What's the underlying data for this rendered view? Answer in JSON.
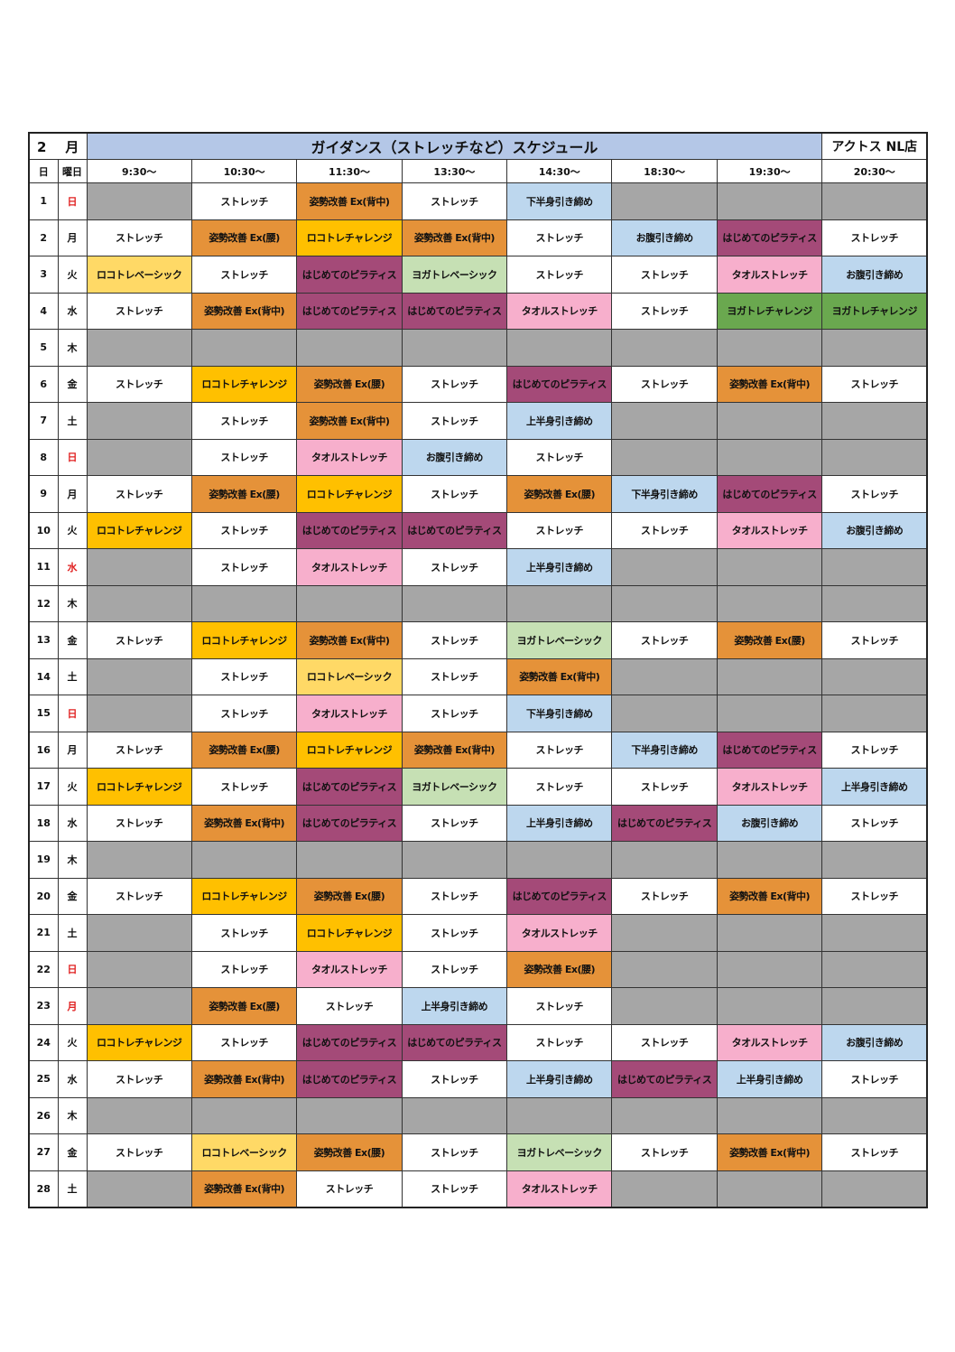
{
  "header": {
    "month_num": "2",
    "month_label": "月",
    "title": "ガイダンス（ストレッチなど）スケジュール",
    "store": "アクトス NL店"
  },
  "columns": {
    "day": "日",
    "weekday": "曜日",
    "times": [
      "9:30～",
      "10:30～",
      "11:30～",
      "13:30～",
      "14:30～",
      "18:30～",
      "19:30～",
      "20:30～"
    ]
  },
  "colors": {
    "closed": "#a6a6a6",
    "ストレッチ": "#ffffff",
    "姿勢改善 Ex(背中)": "#e59239",
    "姿勢改善 Ex(腰)": "#e59239",
    "ロコトレチャレンジ": "#ffc000",
    "ロコトレベーシック": "#ffd966",
    "はじめてのピラティス": "#a44a78",
    "ヨガトレベーシック": "#c6e0b4",
    "ヨガトレチャレンジ": "#6aa84f",
    "タオルストレッチ": "#f7afcc",
    "下半身引き締め": "#bdd7ee",
    "上半身引き締め": "#bdd7ee",
    "お腹引き締め": "#bdd7ee",
    "holiday_text": "#e02020"
  },
  "rows": [
    {
      "day": "1",
      "weekday": "日",
      "red": true,
      "cells": [
        "",
        "ストレッチ",
        "姿勢改善 Ex(背中)",
        "ストレッチ",
        "下半身引き締め",
        "",
        "",
        ""
      ]
    },
    {
      "day": "2",
      "weekday": "月",
      "red": false,
      "cells": [
        "ストレッチ",
        "姿勢改善 Ex(腰)",
        "ロコトレチャレンジ",
        "姿勢改善 Ex(背中)",
        "ストレッチ",
        "お腹引き締め",
        "はじめてのピラティス",
        "ストレッチ"
      ]
    },
    {
      "day": "3",
      "weekday": "火",
      "red": false,
      "cells": [
        "ロコトレベーシック",
        "ストレッチ",
        "はじめてのピラティス",
        "ヨガトレベーシック",
        "ストレッチ",
        "ストレッチ",
        "タオルストレッチ",
        "お腹引き締め"
      ]
    },
    {
      "day": "4",
      "weekday": "水",
      "red": false,
      "cells": [
        "ストレッチ",
        "姿勢改善 Ex(背中)",
        "はじめてのピラティス",
        "はじめてのピラティス",
        "タオルストレッチ",
        "ストレッチ",
        "ヨガトレチャレンジ",
        "ヨガトレチャレンジ"
      ]
    },
    {
      "day": "5",
      "weekday": "木",
      "red": false,
      "cells": [
        "",
        "",
        "",
        "",
        "",
        "",
        "",
        ""
      ]
    },
    {
      "day": "6",
      "weekday": "金",
      "red": false,
      "cells": [
        "ストレッチ",
        "ロコトレチャレンジ",
        "姿勢改善 Ex(腰)",
        "ストレッチ",
        "はじめてのピラティス",
        "ストレッチ",
        "姿勢改善 Ex(背中)",
        "ストレッチ"
      ]
    },
    {
      "day": "7",
      "weekday": "土",
      "red": false,
      "cells": [
        "",
        "ストレッチ",
        "姿勢改善 Ex(背中)",
        "ストレッチ",
        "上半身引き締め",
        "",
        "",
        ""
      ]
    },
    {
      "day": "8",
      "weekday": "日",
      "red": true,
      "cells": [
        "",
        "ストレッチ",
        "タオルストレッチ",
        "お腹引き締め",
        "ストレッチ",
        "",
        "",
        ""
      ]
    },
    {
      "day": "9",
      "weekday": "月",
      "red": false,
      "cells": [
        "ストレッチ",
        "姿勢改善 Ex(腰)",
        "ロコトレチャレンジ",
        "ストレッチ",
        "姿勢改善 Ex(腰)",
        "下半身引き締め",
        "はじめてのピラティス",
        "ストレッチ"
      ]
    },
    {
      "day": "10",
      "weekday": "火",
      "red": false,
      "cells": [
        "ロコトレチャレンジ",
        "ストレッチ",
        "はじめてのピラティス",
        "はじめてのピラティス",
        "ストレッチ",
        "ストレッチ",
        "タオルストレッチ",
        "お腹引き締め"
      ]
    },
    {
      "day": "11",
      "weekday": "水",
      "red": true,
      "cells": [
        "",
        "ストレッチ",
        "タオルストレッチ",
        "ストレッチ",
        "上半身引き締め",
        "",
        "",
        ""
      ]
    },
    {
      "day": "12",
      "weekday": "木",
      "red": false,
      "cells": [
        "",
        "",
        "",
        "",
        "",
        "",
        "",
        ""
      ]
    },
    {
      "day": "13",
      "weekday": "金",
      "red": false,
      "cells": [
        "ストレッチ",
        "ロコトレチャレンジ",
        "姿勢改善 Ex(背中)",
        "ストレッチ",
        "ヨガトレベーシック",
        "ストレッチ",
        "姿勢改善 Ex(腰)",
        "ストレッチ"
      ]
    },
    {
      "day": "14",
      "weekday": "土",
      "red": false,
      "cells": [
        "",
        "ストレッチ",
        "ロコトレベーシック",
        "ストレッチ",
        "姿勢改善 Ex(背中)",
        "",
        "",
        ""
      ]
    },
    {
      "day": "15",
      "weekday": "日",
      "red": true,
      "cells": [
        "",
        "ストレッチ",
        "タオルストレッチ",
        "ストレッチ",
        "下半身引き締め",
        "",
        "",
        ""
      ]
    },
    {
      "day": "16",
      "weekday": "月",
      "red": false,
      "cells": [
        "ストレッチ",
        "姿勢改善 Ex(腰)",
        "ロコトレチャレンジ",
        "姿勢改善 Ex(背中)",
        "ストレッチ",
        "下半身引き締め",
        "はじめてのピラティス",
        "ストレッチ"
      ]
    },
    {
      "day": "17",
      "weekday": "火",
      "red": false,
      "cells": [
        "ロコトレチャレンジ",
        "ストレッチ",
        "はじめてのピラティス",
        "ヨガトレベーシック",
        "ストレッチ",
        "ストレッチ",
        "タオルストレッチ",
        "上半身引き締め"
      ]
    },
    {
      "day": "18",
      "weekday": "水",
      "red": false,
      "cells": [
        "ストレッチ",
        "姿勢改善 Ex(背中)",
        "はじめてのピラティス",
        "ストレッチ",
        "上半身引き締め",
        "はじめてのピラティス",
        "お腹引き締め",
        "ストレッチ"
      ]
    },
    {
      "day": "19",
      "weekday": "木",
      "red": false,
      "cells": [
        "",
        "",
        "",
        "",
        "",
        "",
        "",
        ""
      ]
    },
    {
      "day": "20",
      "weekday": "金",
      "red": false,
      "cells": [
        "ストレッチ",
        "ロコトレチャレンジ",
        "姿勢改善 Ex(腰)",
        "ストレッチ",
        "はじめてのピラティス",
        "ストレッチ",
        "姿勢改善 Ex(背中)",
        "ストレッチ"
      ]
    },
    {
      "day": "21",
      "weekday": "土",
      "red": false,
      "cells": [
        "",
        "ストレッチ",
        "ロコトレチャレンジ",
        "ストレッチ",
        "タオルストレッチ",
        "",
        "",
        ""
      ]
    },
    {
      "day": "22",
      "weekday": "日",
      "red": true,
      "cells": [
        "",
        "ストレッチ",
        "タオルストレッチ",
        "ストレッチ",
        "姿勢改善 Ex(腰)",
        "",
        "",
        ""
      ]
    },
    {
      "day": "23",
      "weekday": "月",
      "red": true,
      "cells": [
        "",
        "姿勢改善 Ex(腰)",
        "ストレッチ",
        "上半身引き締め",
        "ストレッチ",
        "",
        "",
        ""
      ]
    },
    {
      "day": "24",
      "weekday": "火",
      "red": false,
      "cells": [
        "ロコトレチャレンジ",
        "ストレッチ",
        "はじめてのピラティス",
        "はじめてのピラティス",
        "ストレッチ",
        "ストレッチ",
        "タオルストレッチ",
        "お腹引き締め"
      ]
    },
    {
      "day": "25",
      "weekday": "水",
      "red": false,
      "cells": [
        "ストレッチ",
        "姿勢改善 Ex(背中)",
        "はじめてのピラティス",
        "ストレッチ",
        "上半身引き締め",
        "はじめてのピラティス",
        "上半身引き締め",
        "ストレッチ"
      ]
    },
    {
      "day": "26",
      "weekday": "木",
      "red": false,
      "cells": [
        "",
        "",
        "",
        "",
        "",
        "",
        "",
        ""
      ]
    },
    {
      "day": "27",
      "weekday": "金",
      "red": false,
      "cells": [
        "ストレッチ",
        "ロコトレベーシック",
        "姿勢改善 Ex(腰)",
        "ストレッチ",
        "ヨガトレベーシック",
        "ストレッチ",
        "姿勢改善 Ex(背中)",
        "ストレッチ"
      ]
    },
    {
      "day": "28",
      "weekday": "土",
      "red": false,
      "cells": [
        "",
        "姿勢改善 Ex(背中)",
        "ストレッチ",
        "ストレッチ",
        "タオルストレッチ",
        "",
        "",
        ""
      ]
    }
  ]
}
